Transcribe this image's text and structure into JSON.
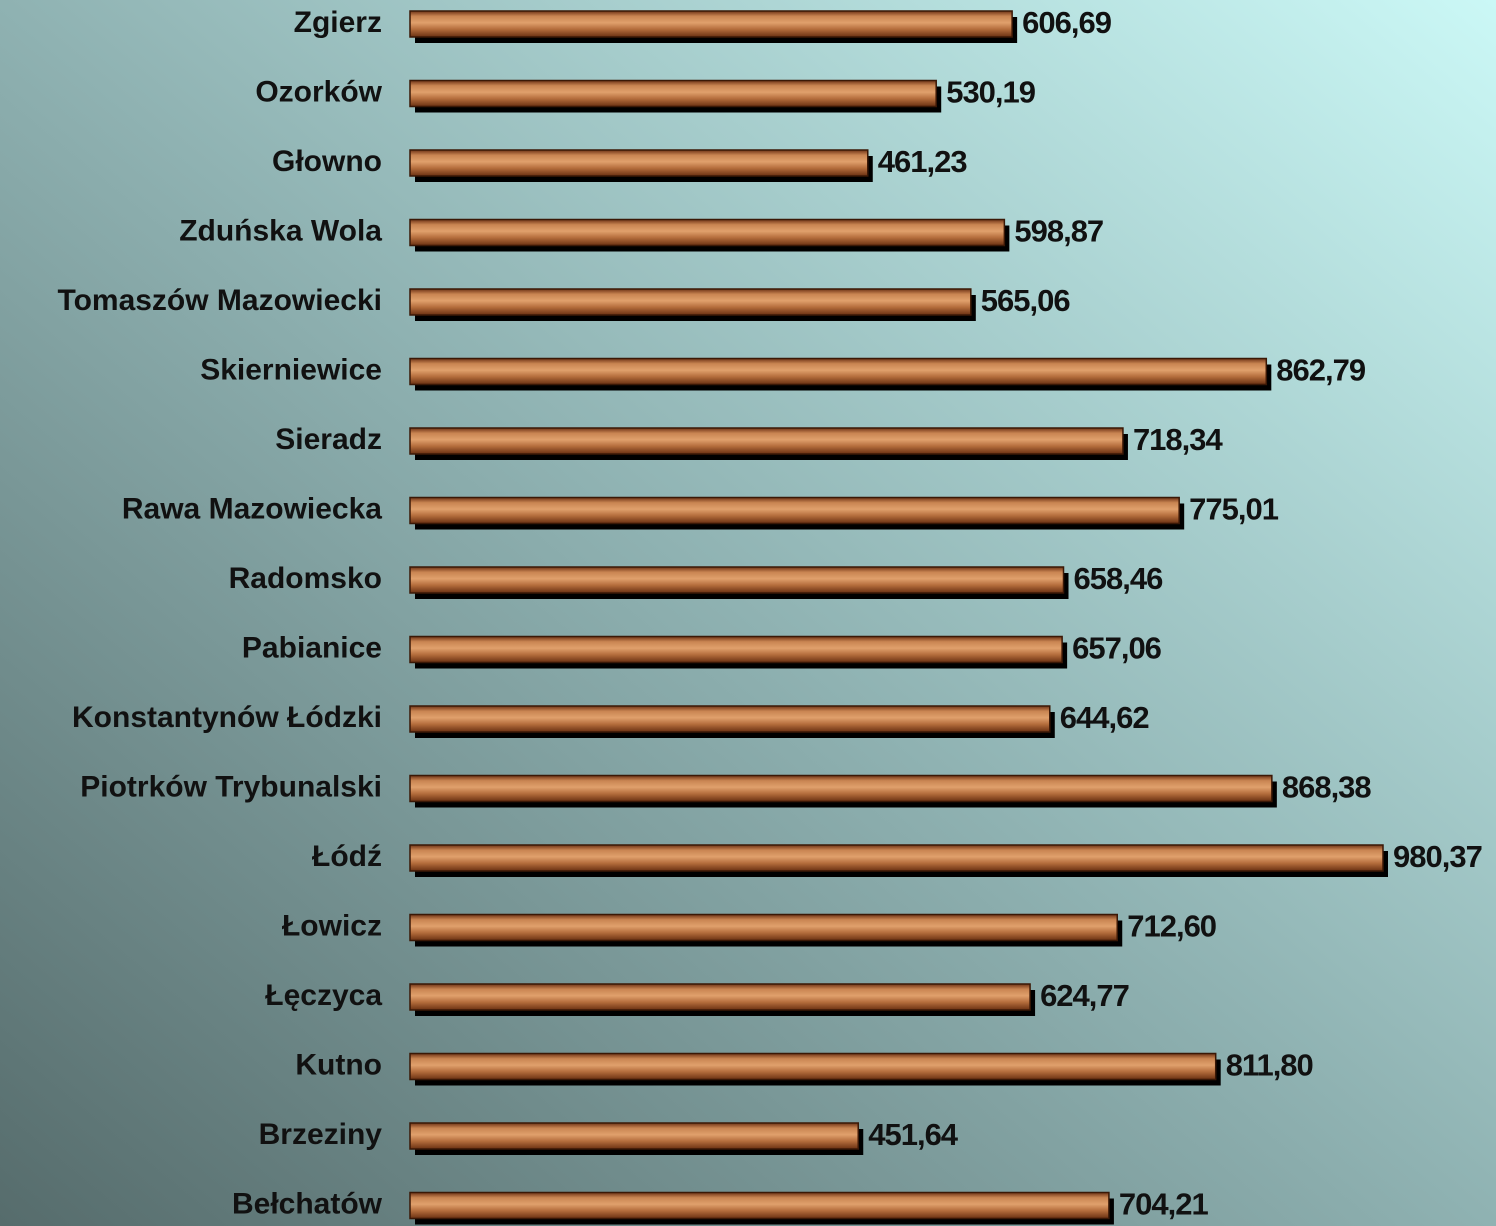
{
  "chart_data": {
    "type": "bar",
    "orientation": "horizontal",
    "categories": [
      "Zgierz",
      "Ozorków",
      "Głowno",
      "Zduńska Wola",
      "Tomaszów Mazowiecki",
      "Skierniewice",
      "Sieradz",
      "Rawa Mazowiecka",
      "Radomsko",
      "Pabianice",
      "Konstantynów Łódzki",
      "Piotrków Trybunalski",
      "Łódź",
      "Łowicz",
      "Łęczyca",
      "Kutno",
      "Brzeziny",
      "Bełchatów"
    ],
    "values": [
      606.69,
      530.19,
      461.23,
      598.87,
      565.06,
      862.79,
      718.34,
      775.01,
      658.46,
      657.06,
      644.62,
      868.38,
      980.37,
      712.6,
      624.77,
      811.8,
      451.64,
      704.21
    ],
    "value_labels": [
      "606,69",
      "530,19",
      "461,23",
      "598,87",
      "565,06",
      "862,79",
      "718,34",
      "775,01",
      "658,46",
      "657,06",
      "644,62",
      "868,38",
      "980,37",
      "712,60",
      "624,77",
      "811,80",
      "451,64",
      "704,21"
    ],
    "color": "#b8703f"
  }
}
